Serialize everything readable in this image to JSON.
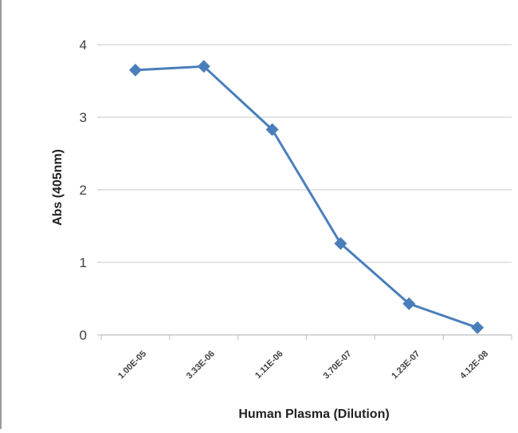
{
  "chart_data": {
    "type": "line",
    "title": "",
    "xlabel": "Human Plasma (Dilution)",
    "ylabel": "Abs (405nm)",
    "categories": [
      "1.00E-05",
      "3.33E-06",
      "1.11E-06",
      "3.70E-07",
      "1.23E-07",
      "4.12E-08"
    ],
    "series": [
      {
        "values": [
          3.65,
          3.7,
          2.83,
          1.26,
          0.43,
          0.1
        ],
        "color": "#4a7ebb",
        "marker": "diamond"
      }
    ],
    "ylim": [
      0,
      4
    ],
    "yticks": [
      "0",
      "1",
      "2",
      "3",
      "4"
    ],
    "grid": true,
    "legend": "none"
  }
}
